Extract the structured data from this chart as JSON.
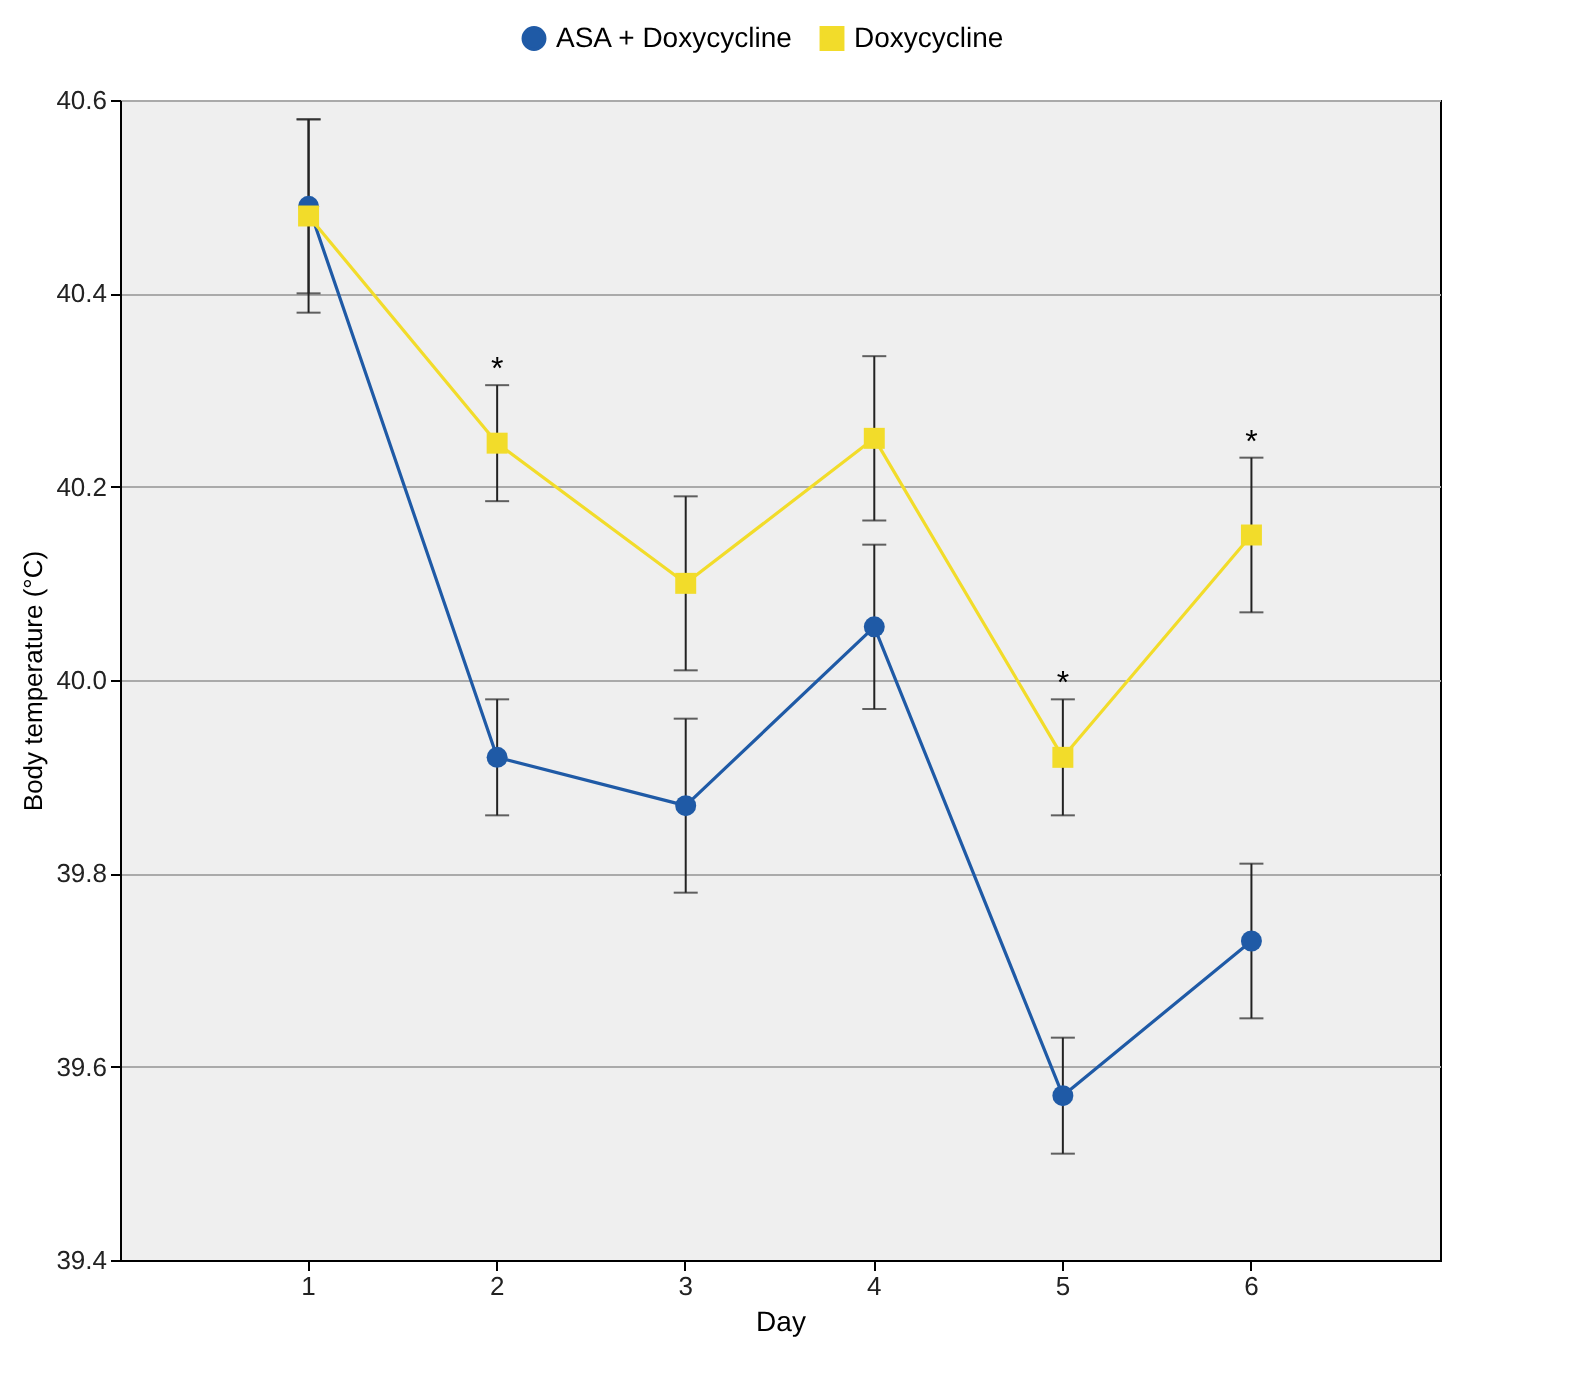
{
  "chart_data": {
    "type": "line",
    "xlabel": "Day",
    "ylabel": "Body temperature (°C)",
    "categories": [
      "1",
      "2",
      "3",
      "4",
      "5",
      "6"
    ],
    "series": [
      {
        "name": "ASA + Doxycycline",
        "color": "#1f5aa6",
        "marker": "circle",
        "values": [
          40.49,
          39.92,
          39.87,
          40.055,
          39.57,
          39.73
        ],
        "errors": [
          0.09,
          0.06,
          0.09,
          0.085,
          0.06,
          0.08
        ]
      },
      {
        "name": "Doxycycline",
        "color": "#f2dc2a",
        "marker": "square",
        "values": [
          40.48,
          40.245,
          40.1,
          40.25,
          39.92,
          40.15
        ],
        "errors": [
          0.1,
          0.06,
          0.09,
          0.085,
          0.06,
          0.08
        ]
      }
    ],
    "ylim": [
      39.4,
      40.6
    ],
    "yticks": [
      39.4,
      39.6,
      39.8,
      {
        "value": 40,
        "label": "40.0"
      },
      40.2,
      40.4,
      40.6
    ],
    "grid": "y",
    "legend": "top",
    "annotations": [
      {
        "text": "*",
        "x": "2",
        "y": 40.305
      },
      {
        "text": "*",
        "x": "5",
        "y": 39.98
      },
      {
        "text": "*",
        "x": "6",
        "y": 40.23
      }
    ]
  }
}
